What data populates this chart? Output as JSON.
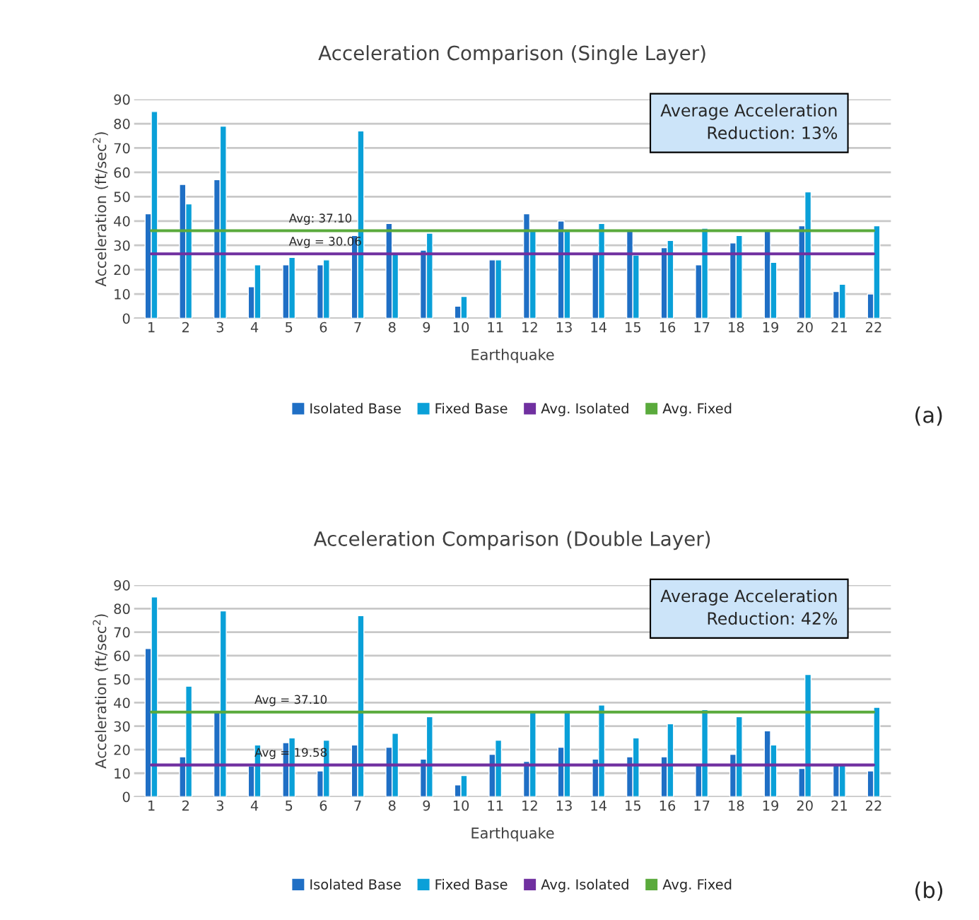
{
  "chart_data": [
    {
      "type": "bar",
      "title": "Acceleration Comparison (Single Layer)",
      "xlabel": "Earthquake",
      "ylabel": "Acceleration (ft/sec$^{2}$)",
      "categories": [
        "1",
        "2",
        "3",
        "4",
        "5",
        "6",
        "7",
        "8",
        "9",
        "10",
        "11",
        "12",
        "13",
        "14",
        "15",
        "16",
        "17",
        "18",
        "19",
        "20",
        "21",
        "22"
      ],
      "series": [
        {
          "name": "Isolated Base",
          "color": "#1f6fc5",
          "values": [
            43,
            55,
            57,
            13,
            22,
            22,
            34,
            39,
            28,
            5,
            24,
            43,
            40,
            27,
            36,
            29,
            22,
            31,
            36,
            38,
            11,
            10
          ]
        },
        {
          "name": "Fixed Base",
          "color": "#0aa0d8",
          "values": [
            85,
            47,
            79,
            22,
            25,
            24,
            77,
            27,
            35,
            9,
            24,
            36,
            36,
            39,
            26,
            32,
            37,
            34,
            23,
            52,
            14,
            38
          ]
        },
        {
          "name": "Avg. Isolated",
          "type": "line",
          "color": "#7030a0",
          "values": [
            26.5,
            26.5,
            26.5,
            26.5,
            26.5,
            26.5,
            26.5,
            26.5,
            26.5,
            26.5,
            26.5,
            26.5,
            26.5,
            26.5,
            26.5,
            26.5,
            26.5,
            26.5,
            26.5,
            26.5,
            26.5,
            26.5
          ]
        },
        {
          "name": "Avg. Fixed",
          "type": "line",
          "color": "#5aaa3c",
          "values": [
            36,
            36,
            36,
            36,
            36,
            36,
            36,
            36,
            36,
            36,
            36,
            36,
            36,
            36,
            36,
            36,
            36,
            36,
            36,
            36,
            36,
            36
          ]
        }
      ],
      "ylim": [
        0,
        90
      ],
      "yticks": [
        0,
        10,
        20,
        30,
        40,
        50,
        60,
        70,
        80,
        90
      ],
      "grid": "y",
      "legend": "bottom",
      "annotations": [
        "Average Acceleration\nReduction: 13%",
        "(a)",
        {
          "text": "Avg: 37.10",
          "x": "5",
          "y": 36
        },
        {
          "text": "Avg = 30.06",
          "x": "5",
          "y": 26.5
        }
      ]
    },
    {
      "type": "bar",
      "title": "Acceleration Comparison (Double Layer)",
      "xlabel": "Earthquake",
      "ylabel": "Acceleration (ft/sec$^{2}$)",
      "categories": [
        "1",
        "2",
        "3",
        "4",
        "5",
        "6",
        "7",
        "8",
        "9",
        "10",
        "11",
        "12",
        "13",
        "14",
        "15",
        "16",
        "17",
        "18",
        "19",
        "20",
        "21",
        "22"
      ],
      "series": [
        {
          "name": "Isolated Base",
          "color": "#1f6fc5",
          "values": [
            63,
            17,
            36,
            13,
            23,
            11,
            22,
            21,
            16,
            5,
            18,
            15,
            21,
            16,
            17,
            17,
            14,
            18,
            28,
            12,
            14,
            11
          ]
        },
        {
          "name": "Fixed Base",
          "color": "#0aa0d8",
          "values": [
            85,
            47,
            79,
            22,
            25,
            24,
            77,
            27,
            34,
            9,
            24,
            36,
            36,
            39,
            25,
            31,
            37,
            34,
            22,
            52,
            14,
            38
          ]
        },
        {
          "name": "Avg. Isolated",
          "type": "line",
          "color": "#7030a0",
          "values": [
            13.5,
            13.5,
            13.5,
            13.5,
            13.5,
            13.5,
            13.5,
            13.5,
            13.5,
            13.5,
            13.5,
            13.5,
            13.5,
            13.5,
            13.5,
            13.5,
            13.5,
            13.5,
            13.5,
            13.5,
            13.5,
            13.5
          ]
        },
        {
          "name": "Avg. Fixed",
          "type": "line",
          "color": "#5aaa3c",
          "values": [
            36,
            36,
            36,
            36,
            36,
            36,
            36,
            36,
            36,
            36,
            36,
            36,
            36,
            36,
            36,
            36,
            36,
            36,
            36,
            36,
            36,
            36
          ]
        }
      ],
      "ylim": [
        0,
        90
      ],
      "yticks": [
        0,
        10,
        20,
        30,
        40,
        50,
        60,
        70,
        80,
        90
      ],
      "grid": "y",
      "legend": "bottom",
      "annotations": [
        "Average Acceleration\nReduction: 42%",
        "(b)",
        {
          "text": "Avg = 37.10",
          "x": "4",
          "y": 36
        },
        {
          "text": "Avg = 19.58",
          "x": "4",
          "y": 13.5
        }
      ]
    }
  ]
}
